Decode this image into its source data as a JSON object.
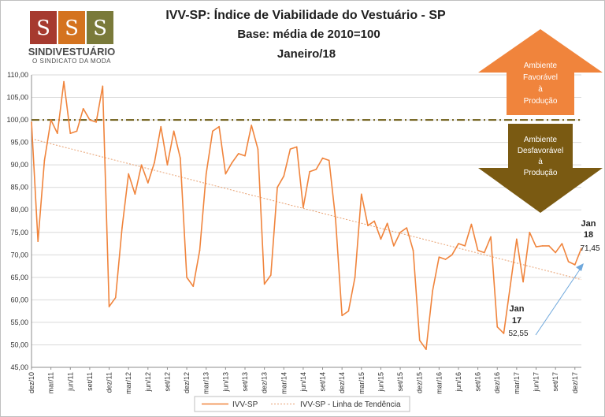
{
  "logo": {
    "name": "SINDIVESTUÁRIO",
    "subtitle": "O SINDICATO DA MODA",
    "panel_colors": [
      "#a63a2f",
      "#d4731f",
      "#7a7a3a"
    ]
  },
  "title_lines": [
    "IVV-SP: Índice de Viabilidade do Vestuário - SP",
    "Base: média de 2010=100",
    "Janeiro/18"
  ],
  "arrows": {
    "up": {
      "lines": [
        "Ambiente",
        "Favorável",
        "à",
        "Produção"
      ],
      "color": "#f0843c"
    },
    "down": {
      "lines": [
        "Ambiente",
        "Desfavorável",
        "à",
        "Produção"
      ],
      "color": "#7a5a12"
    }
  },
  "annotations": [
    {
      "label_lines": [
        "Jan",
        "17"
      ],
      "value": "52,55"
    },
    {
      "label_lines": [
        "Jan",
        "18"
      ],
      "value": "71,45"
    }
  ],
  "legend": [
    {
      "name": "IVV-SP",
      "style": "solid"
    },
    {
      "name": "IVV-SP - Linha de Tendência",
      "style": "dotted"
    }
  ],
  "colors": {
    "series": "#f0843c",
    "trend": "#e8a070",
    "base_line": "#6b5a12",
    "annotation_arrow": "#6fa8dc",
    "grid": "#d9d9d9"
  },
  "chart_data": {
    "type": "line",
    "ylim": [
      45,
      110
    ],
    "yticks": [
      "45,00",
      "50,00",
      "55,00",
      "60,00",
      "65,00",
      "70,00",
      "75,00",
      "80,00",
      "85,00",
      "90,00",
      "95,00",
      "100,00",
      "105,00",
      "110,00"
    ],
    "xtick_labels": [
      "dez/10",
      "mar/11",
      "jun/11",
      "set/11",
      "dez/11",
      "mar/12",
      "jun/12",
      "set/12",
      "dez/12",
      "mar/13",
      "jun/13",
      "set/13",
      "dez/13",
      "mar/14",
      "jun/14",
      "set/14",
      "dez/14",
      "mar/15",
      "jun/15",
      "set/15",
      "dez/15",
      "mar/16",
      "jun/16",
      "set/16",
      "dez/16",
      "mar/17",
      "jun/17",
      "set/17",
      "dez/17"
    ],
    "reference_line": {
      "y": 100
    },
    "series": [
      {
        "name": "IVV-SP",
        "values": [
          99.5,
          73.0,
          91.0,
          100.0,
          97.0,
          108.5,
          97.0,
          97.5,
          102.5,
          100.0,
          99.5,
          107.5,
          58.5,
          60.5,
          76.0,
          88.0,
          83.5,
          90.0,
          86.0,
          90.5,
          98.5,
          90.0,
          97.5,
          91.5,
          65.0,
          63.0,
          71.0,
          88.0,
          97.5,
          98.5,
          88.0,
          90.5,
          92.5,
          92.0,
          98.8,
          93.5,
          63.5,
          65.5,
          85.0,
          87.5,
          93.5,
          94.0,
          80.5,
          88.5,
          89.0,
          91.5,
          91.0,
          78.0,
          56.5,
          57.5,
          65.0,
          83.5,
          76.5,
          77.5,
          73.5,
          77.0,
          72.0,
          75.0,
          76.0,
          71.0,
          51.0,
          49.0,
          62.0,
          69.5,
          69.0,
          70.0,
          72.5,
          72.0,
          76.8,
          71.0,
          70.5,
          74.0,
          54.0,
          52.55,
          63.0,
          73.5,
          64.0,
          75.0,
          71.8,
          72.0,
          72.0,
          70.5,
          72.5,
          68.5,
          67.8,
          71.45
        ]
      },
      {
        "name": "IVV-SP - Linha de Tendência",
        "start": 95.8,
        "end": 64.5
      }
    ]
  }
}
